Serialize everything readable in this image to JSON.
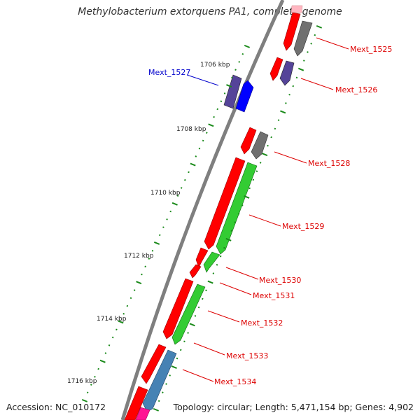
{
  "title": "Methylobacterium extorquens PA1, complete genome",
  "footer": {
    "accession": "Accession: NC_010172",
    "info": "Topology: circular; Length: 5,471,154 bp; Genes: 4,902"
  },
  "ticks": [
    "1706 kbp",
    "1708 kbp",
    "1710 kbp",
    "1712 kbp",
    "1714 kbp",
    "1716 kbp"
  ],
  "genes": [
    "Mext_1525",
    "Mext_1526",
    "Mext_1527",
    "Mext_1528",
    "Mext_1529",
    "Mext_1530",
    "Mext_1531",
    "Mext_1532",
    "Mext_1533",
    "Mext_1534"
  ],
  "colors": {
    "forward_cds": "#ff0000",
    "reverse_cds": "#0000ff",
    "gray_feature": "#707070",
    "purple_feature": "#554499",
    "green_feature": "#33cc33",
    "steelblue_feature": "#4682b4",
    "magenta_feature": "#ff1493",
    "tick_marks": "#1a8a1a",
    "backbone": "#7f7f7f",
    "label_red": "#dd0000",
    "label_blue": "#0000cc"
  }
}
